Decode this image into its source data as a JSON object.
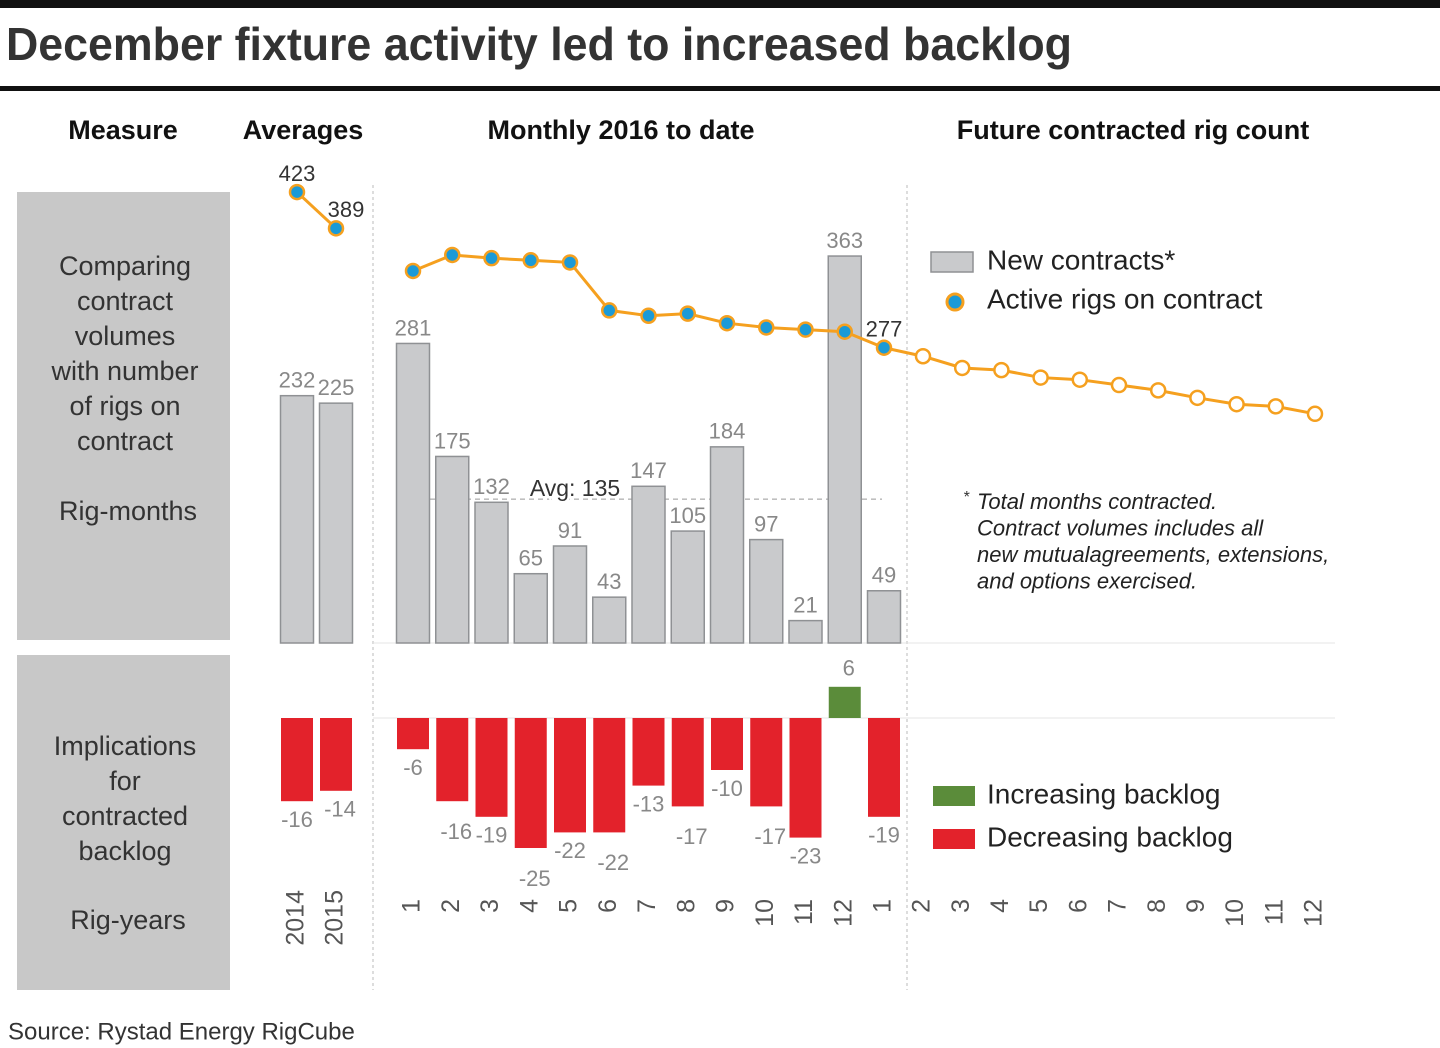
{
  "title": "December fixture activity led to increased backlog",
  "source": "Source: Rystad Energy RigCube",
  "measure_header": "Measure",
  "rows": [
    {
      "label_lines": [
        "Comparing",
        "contract",
        "volumes",
        "with number",
        "of rigs on",
        "contract"
      ],
      "unit": "Rig-months"
    },
    {
      "label_lines": [
        "Implications",
        "for",
        "contracted",
        "backlog"
      ],
      "unit": "Rig-years"
    }
  ],
  "legend": [
    {
      "name": "New contracts*",
      "color": "#c9cacc"
    },
    {
      "name": "Active rigs on contract",
      "color": "#1b9ad7"
    }
  ],
  "backlog_legend": [
    {
      "name": "Increasing backlog",
      "color": "#5b8c3a"
    },
    {
      "name": "Decreasing backlog",
      "color": "#e3222b"
    }
  ],
  "line_color": "#f5a01f",
  "footnote": {
    "mark": "*",
    "lines": [
      "Total months contracted.",
      "Contract volumes includes all",
      "new mutualagreements, extensions,",
      "and options exercised."
    ]
  },
  "chart_data": [
    {
      "type": "bar-line",
      "title": "Averages",
      "categories": [
        "2014",
        "2015"
      ],
      "bars": {
        "values": [
          232,
          225
        ]
      },
      "line": {
        "values": [
          423,
          389
        ],
        "value_labels": [
          "423",
          "389"
        ]
      },
      "backlog": {
        "values": [
          -16,
          -14
        ]
      }
    },
    {
      "type": "bar-line",
      "title": "Monthly 2016 to date",
      "categories": [
        "1",
        "2",
        "3",
        "4",
        "5",
        "6",
        "7",
        "8",
        "9",
        "10",
        "11",
        "12",
        "1"
      ],
      "bars": {
        "values": [
          281,
          175,
          132,
          65,
          91,
          43,
          147,
          105,
          184,
          97,
          21,
          363,
          49
        ]
      },
      "line": {
        "values": [
          349,
          364,
          361,
          359,
          357,
          312,
          307,
          309,
          300,
          296,
          294,
          292,
          277
        ],
        "value_labels": [
          null,
          null,
          null,
          null,
          null,
          null,
          null,
          null,
          null,
          null,
          null,
          null,
          "277"
        ]
      },
      "backlog": {
        "values": [
          -6,
          -16,
          -19,
          -25,
          -22,
          -22,
          -13,
          -17,
          -10,
          -17,
          -23,
          6,
          -19
        ]
      },
      "average": {
        "value": 135,
        "label": "Avg: 135"
      }
    },
    {
      "type": "line",
      "title": "Future contracted rig count",
      "categories": [
        "2",
        "3",
        "4",
        "5",
        "6",
        "7",
        "8",
        "9",
        "10",
        "11",
        "12"
      ],
      "line": {
        "values": [
          269,
          258,
          256,
          249,
          247,
          242,
          237,
          230,
          224,
          222,
          215
        ],
        "hollow": true
      }
    }
  ]
}
